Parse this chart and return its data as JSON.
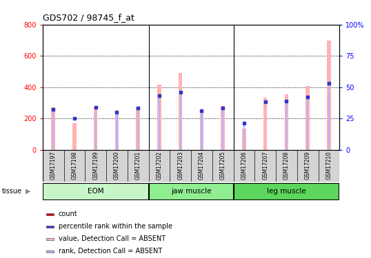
{
  "title": "GDS702 / 98745_f_at",
  "samples": [
    "GSM17197",
    "GSM17198",
    "GSM17199",
    "GSM17200",
    "GSM17201",
    "GSM17202",
    "GSM17203",
    "GSM17204",
    "GSM17205",
    "GSM17206",
    "GSM17207",
    "GSM17208",
    "GSM17209",
    "GSM17210"
  ],
  "value_absent": [
    270,
    170,
    275,
    248,
    270,
    415,
    490,
    252,
    278,
    135,
    330,
    355,
    405,
    695
  ],
  "rank_absent": [
    260,
    0,
    242,
    235,
    260,
    338,
    370,
    242,
    262,
    170,
    0,
    305,
    332,
    420
  ],
  "percentile": [
    32,
    25,
    34,
    30,
    33,
    43,
    46,
    31,
    33,
    21,
    38,
    39,
    42,
    53
  ],
  "groups": [
    {
      "label": "EOM",
      "start": 0,
      "end": 4
    },
    {
      "label": "jaw muscle",
      "start": 5,
      "end": 8
    },
    {
      "label": "leg muscle",
      "start": 9,
      "end": 13
    }
  ],
  "group_colors": [
    "#c8f5c8",
    "#90ee90",
    "#5cd65c"
  ],
  "ylim_left": [
    0,
    800
  ],
  "ylim_right": [
    0,
    100
  ],
  "yticks_left": [
    0,
    200,
    400,
    600,
    800
  ],
  "yticks_right": [
    0,
    25,
    50,
    75,
    100
  ],
  "left_tick_labels": [
    "0",
    "200",
    "400",
    "600",
    "800"
  ],
  "right_tick_labels": [
    "0",
    "25",
    "50",
    "75",
    "100%"
  ],
  "absent_value_color": "#ffb3b3",
  "absent_rank_color": "#b3b3ff",
  "count_color": "#cc0000",
  "percentile_color": "#3333cc",
  "xticklabel_bg": "#d4d4d4",
  "legend_items": [
    {
      "color": "#cc0000",
      "label": "count"
    },
    {
      "color": "#3333cc",
      "label": "percentile rank within the sample"
    },
    {
      "color": "#ffb3b3",
      "label": "value, Detection Call = ABSENT"
    },
    {
      "color": "#b3b3ff",
      "label": "rank, Detection Call = ABSENT"
    }
  ]
}
